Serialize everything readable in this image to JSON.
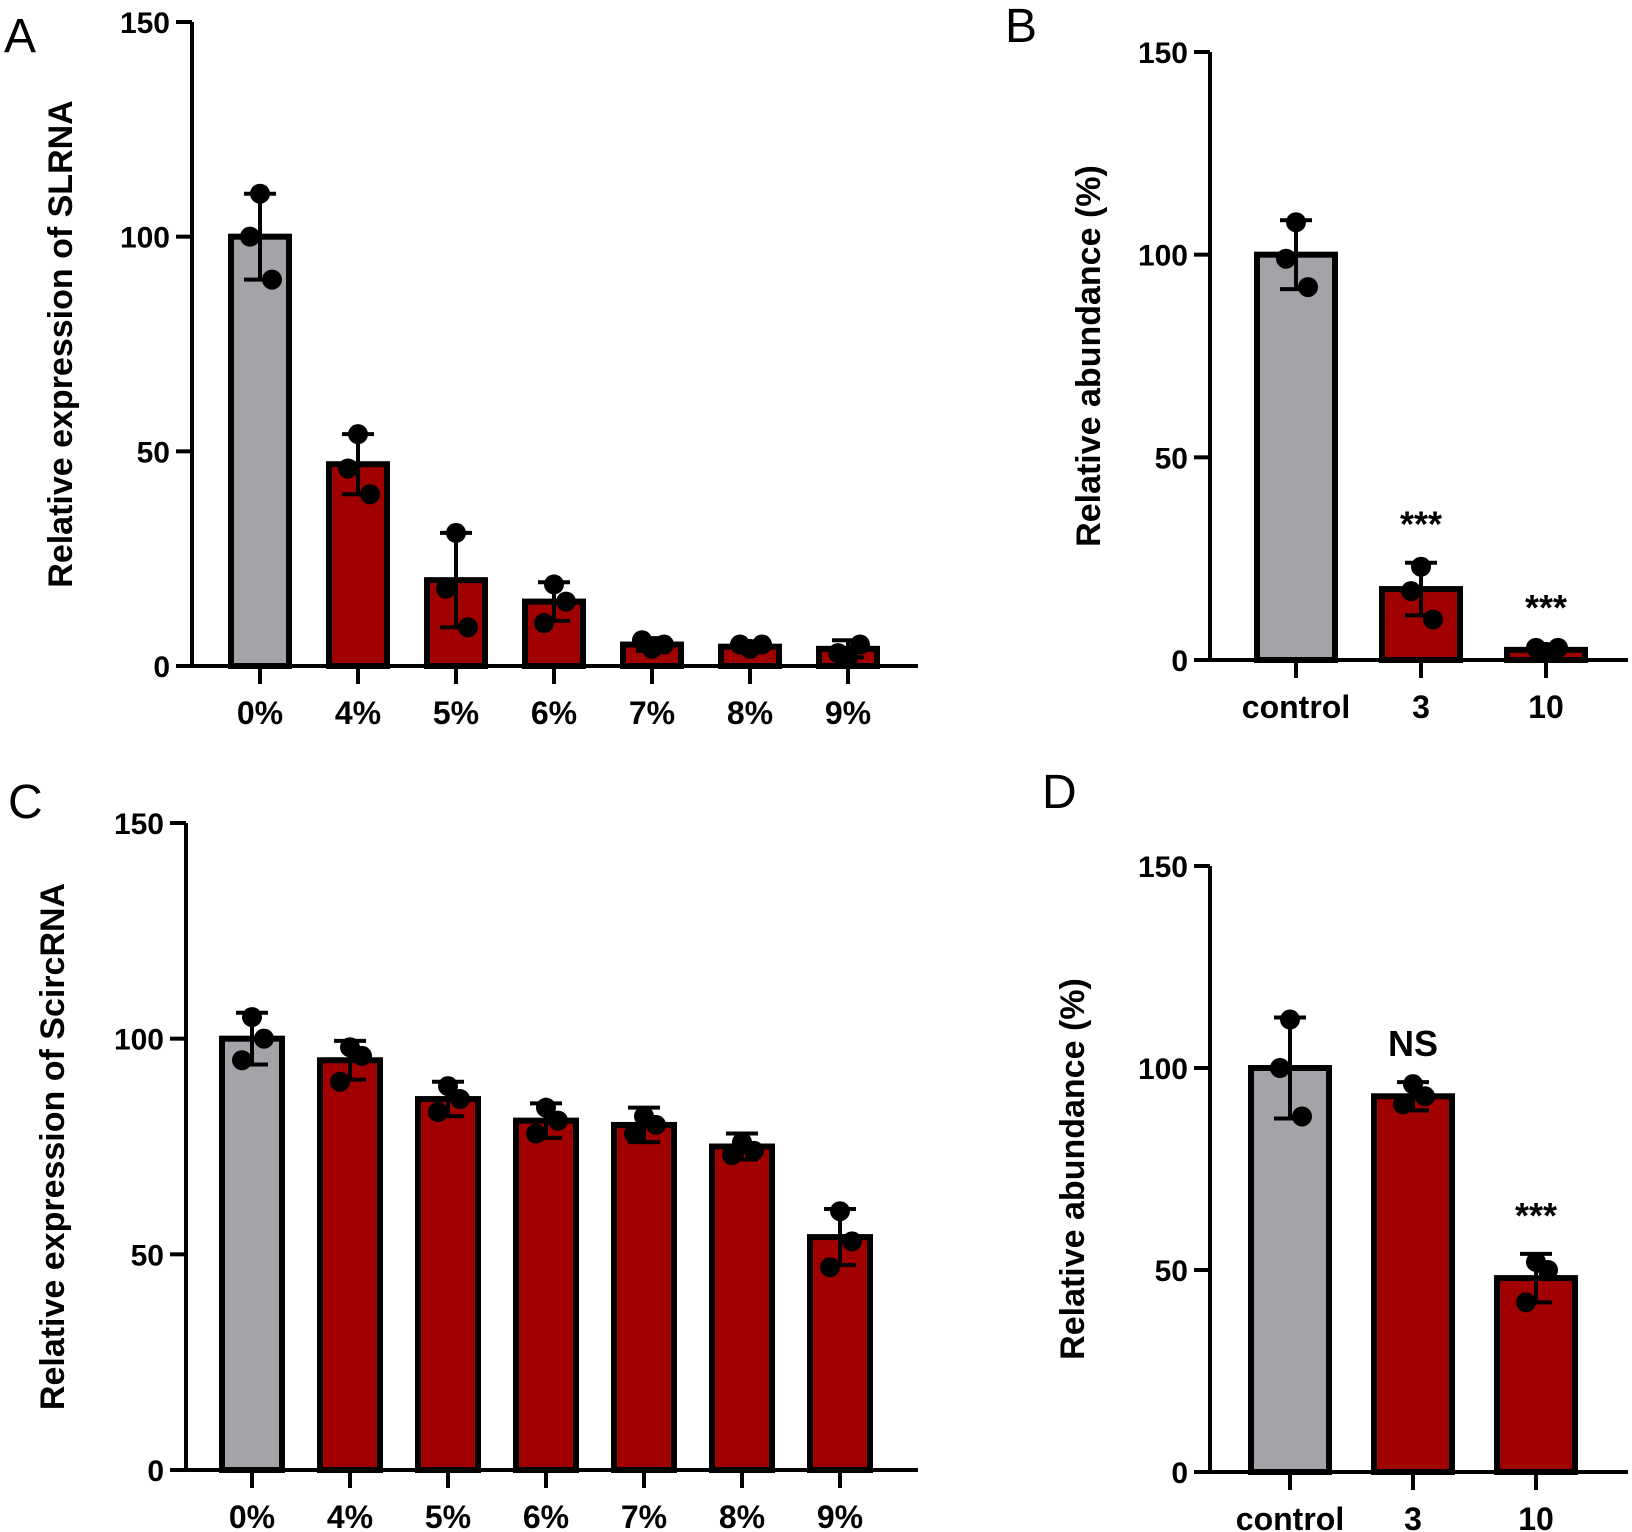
{
  "colors": {
    "control": "#a3a3a8",
    "treated": "#a00000",
    "ink": "#000000"
  },
  "chart_data": [
    {
      "panel": "A",
      "type": "bar",
      "ylabel": "Relative expression of SLRNA",
      "xlabel": "",
      "ylim": [
        0,
        150
      ],
      "yticks": [
        "0",
        "50",
        "100",
        "150"
      ],
      "categories": [
        "0%",
        "4%",
        "5%",
        "6%",
        "7%",
        "8%",
        "9%"
      ],
      "values": [
        100,
        47,
        20,
        15,
        5,
        4.5,
        4
      ],
      "errors": [
        10,
        7,
        11,
        4.5,
        1.5,
        0.8,
        2
      ],
      "points": [
        [
          110,
          100,
          90
        ],
        [
          54,
          46,
          40
        ],
        [
          31,
          18,
          9
        ],
        [
          19,
          10,
          15
        ],
        [
          4,
          6,
          5
        ],
        [
          4,
          5,
          5
        ],
        [
          2,
          3,
          5
        ]
      ],
      "annotations": [
        "",
        "",
        "",
        "",
        "",
        "",
        ""
      ]
    },
    {
      "panel": "B",
      "type": "bar",
      "ylabel": "Relative abundance (%)",
      "xlabel": "",
      "ylim": [
        0,
        150
      ],
      "yticks": [
        "0",
        "50",
        "100",
        "150"
      ],
      "categories": [
        "control",
        "3",
        "10"
      ],
      "values": [
        100,
        17.5,
        2.5
      ],
      "errors": [
        8.5,
        6.5,
        1
      ],
      "points": [
        [
          108,
          99,
          92
        ],
        [
          23,
          17,
          10
        ],
        [
          2,
          3,
          3
        ]
      ],
      "annotations": [
        "",
        "***",
        "***"
      ]
    },
    {
      "panel": "C",
      "type": "bar",
      "ylabel": "Relative expression of ScircRNA",
      "xlabel": "",
      "ylim": [
        0,
        150
      ],
      "yticks": [
        "0",
        "50",
        "100",
        "150"
      ],
      "categories": [
        "0%",
        "4%",
        "5%",
        "6%",
        "7%",
        "8%",
        "9%"
      ],
      "values": [
        100,
        95,
        86,
        81,
        80,
        75,
        54
      ],
      "errors": [
        6,
        4.5,
        4,
        4,
        4,
        3,
        6.5
      ],
      "points": [
        [
          105,
          95,
          100
        ],
        [
          98,
          90,
          96
        ],
        [
          89,
          83,
          86
        ],
        [
          84,
          78,
          81
        ],
        [
          82,
          78,
          80
        ],
        [
          76,
          73,
          74
        ],
        [
          60,
          47,
          53
        ]
      ],
      "annotations": [
        "",
        "",
        "",
        "",
        "",
        "",
        ""
      ]
    },
    {
      "panel": "D",
      "type": "bar",
      "ylabel": "Relative abundance (%)",
      "xlabel": "",
      "ylim": [
        0,
        150
      ],
      "yticks": [
        "0",
        "50",
        "100",
        "150"
      ],
      "categories": [
        "control",
        "3",
        "10"
      ],
      "values": [
        100,
        93,
        48
      ],
      "errors": [
        12.5,
        3.5,
        6
      ],
      "points": [
        [
          112,
          100,
          88
        ],
        [
          96,
          91,
          93
        ],
        [
          52,
          42,
          50
        ]
      ],
      "annotations": [
        "",
        "NS",
        "***"
      ]
    }
  ]
}
